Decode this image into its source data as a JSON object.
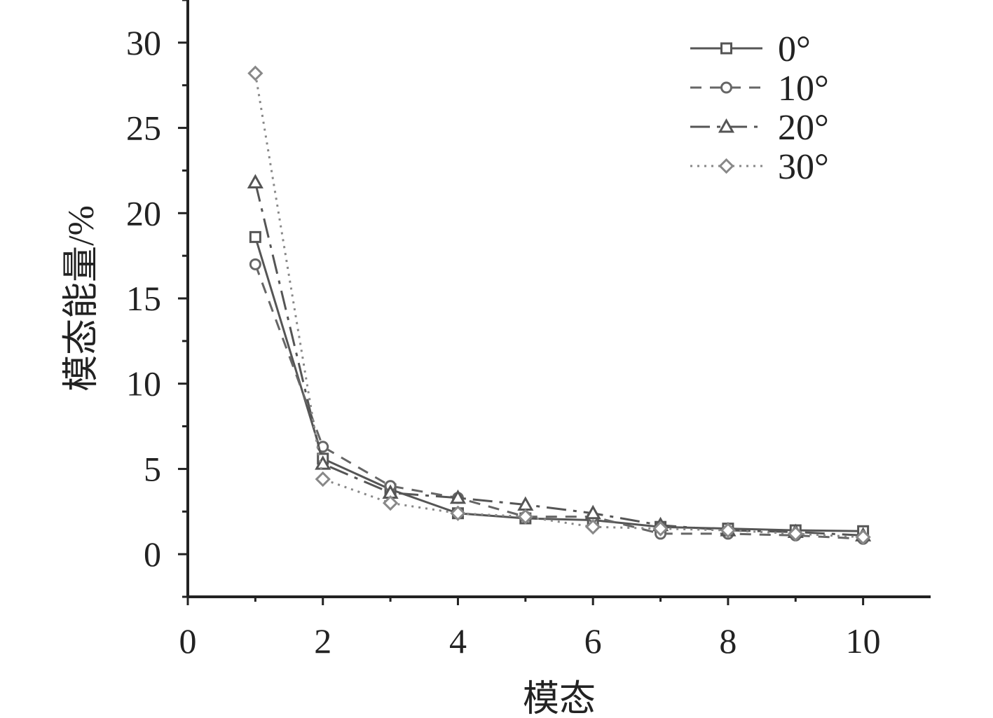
{
  "chart_data": {
    "type": "line",
    "title": "",
    "xlabel": "模态",
    "ylabel": "模态能量/%",
    "xlim": [
      0,
      11
    ],
    "ylim": [
      -2.5,
      32.5
    ],
    "x_ticks": [
      "0",
      "2",
      "4",
      "6",
      "8",
      "10"
    ],
    "y_ticks": [
      "0",
      "5",
      "10",
      "15",
      "20",
      "25",
      "30"
    ],
    "legend_position": "top-right",
    "grid": false,
    "x": [
      1,
      2,
      3,
      4,
      5,
      6,
      7,
      8,
      9,
      10
    ],
    "series": [
      {
        "name": "0°",
        "marker": "square",
        "line_style": "solid",
        "color": "#555555",
        "values": [
          18.6,
          5.6,
          3.8,
          2.4,
          2.1,
          2.0,
          1.6,
          1.5,
          1.4,
          1.35
        ]
      },
      {
        "name": "10°",
        "marker": "circle",
        "line_style": "dashed",
        "color": "#666666",
        "values": [
          17.0,
          6.3,
          4.0,
          3.3,
          2.2,
          2.2,
          1.2,
          1.2,
          1.1,
          0.9
        ]
      },
      {
        "name": "20°",
        "marker": "triangle",
        "line_style": "dash-dot",
        "color": "#555555",
        "values": [
          21.8,
          5.3,
          3.6,
          3.3,
          2.9,
          2.4,
          1.7,
          1.4,
          1.3,
          1.1
        ]
      },
      {
        "name": "30°",
        "marker": "diamond",
        "line_style": "dotted",
        "color": "#888888",
        "values": [
          28.2,
          4.4,
          3.0,
          2.4,
          2.2,
          1.6,
          1.5,
          1.4,
          1.2,
          1.0
        ]
      }
    ]
  }
}
